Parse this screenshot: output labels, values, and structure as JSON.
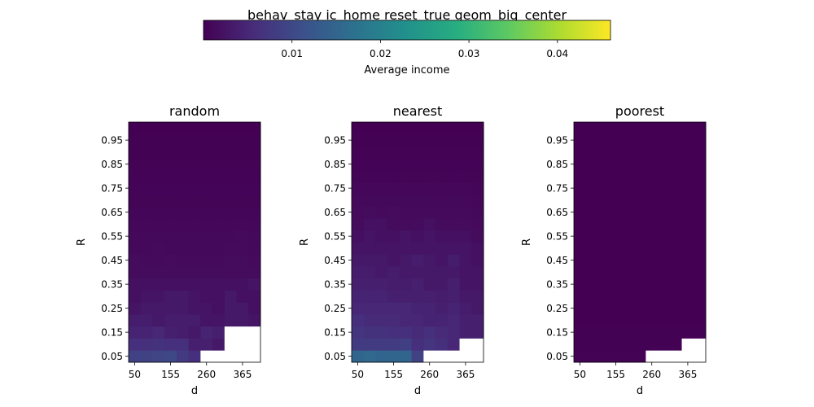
{
  "title": "behav_stay ic_home reset_true geom_big_center",
  "colorbar": {
    "label": "Average income",
    "colormap": "viridis",
    "vmin": 0.0,
    "vmax": 0.046,
    "ticks": [
      0.01,
      0.02,
      0.03,
      0.04
    ],
    "tick_labels": [
      "0.01",
      "0.02",
      "0.03",
      "0.04"
    ],
    "orientation": "horizontal",
    "placement": "top-center"
  },
  "chart_data": [
    {
      "type": "heatmap",
      "title": "random",
      "xlabel": "d",
      "ylabel": "R",
      "x_tick_labels": [
        "50",
        "155",
        "260",
        "365"
      ],
      "y_tick_labels": [
        "0.05",
        "0.15",
        "0.25",
        "0.35",
        "0.45",
        "0.55",
        "0.65",
        "0.75",
        "0.85",
        "0.95"
      ],
      "x": [
        50,
        85,
        120,
        155,
        190,
        225,
        260,
        295,
        330,
        365,
        400
      ],
      "y": [
        0.05,
        0.1,
        0.15,
        0.2,
        0.25,
        0.3,
        0.35,
        0.4,
        0.45,
        0.5,
        0.55,
        0.6,
        0.65,
        0.7,
        0.75,
        0.8,
        0.85,
        0.9,
        0.95,
        1.0
      ],
      "missing_color": "white",
      "z": [
        [
          0.009,
          0.009,
          0.0095,
          0.01,
          0.008,
          0.006,
          null,
          null,
          null,
          null,
          null
        ],
        [
          0.006,
          0.006,
          0.0065,
          0.006,
          0.006,
          0.004,
          0.004,
          0.003,
          null,
          null,
          null
        ],
        [
          0.0045,
          0.0045,
          0.005,
          0.004,
          0.0035,
          0.003,
          0.0045,
          0.004,
          null,
          null,
          null
        ],
        [
          0.0035,
          0.0035,
          0.003,
          0.0035,
          0.0035,
          0.0035,
          0.0025,
          0.0025,
          0.003,
          0.003,
          0.0025
        ],
        [
          0.0025,
          0.003,
          0.003,
          0.003,
          0.003,
          0.0025,
          0.0025,
          0.002,
          0.003,
          0.003,
          0.002
        ],
        [
          0.002,
          0.0025,
          0.0025,
          0.003,
          0.003,
          0.0025,
          0.002,
          0.002,
          0.003,
          0.002,
          0.002
        ],
        [
          0.002,
          0.002,
          0.002,
          0.002,
          0.002,
          0.002,
          0.002,
          0.002,
          0.002,
          0.002,
          0.0025
        ],
        [
          0.0015,
          0.0015,
          0.0015,
          0.0015,
          0.0015,
          0.0015,
          0.0015,
          0.0015,
          0.0015,
          0.0015,
          0.0015
        ],
        [
          0.0015,
          0.0012,
          0.0012,
          0.0015,
          0.0012,
          0.0012,
          0.0012,
          0.0012,
          0.0015,
          0.0015,
          0.0012
        ],
        [
          0.001,
          0.001,
          0.0012,
          0.001,
          0.001,
          0.001,
          0.001,
          0.001,
          0.0012,
          0.0012,
          0.001
        ],
        [
          0.001,
          0.001,
          0.001,
          0.001,
          0.001,
          0.001,
          0.001,
          0.001,
          0.001,
          0.0012,
          0.001
        ],
        [
          0.0008,
          0.0008,
          0.0008,
          0.0008,
          0.0008,
          0.0008,
          0.0008,
          0.0008,
          0.0008,
          0.0008,
          0.0008
        ],
        [
          0.0006,
          0.0006,
          0.0006,
          0.0006,
          0.0006,
          0.0006,
          0.0006,
          0.0006,
          0.0006,
          0.0006,
          0.0006
        ],
        [
          0.0005,
          0.0005,
          0.0005,
          0.0005,
          0.0005,
          0.0005,
          0.0005,
          0.0005,
          0.0005,
          0.0005,
          0.0005
        ],
        [
          0.0004,
          0.0004,
          0.0004,
          0.0004,
          0.0004,
          0.0004,
          0.0004,
          0.0004,
          0.0004,
          0.0004,
          0.0004
        ],
        [
          0.0003,
          0.0003,
          0.0003,
          0.0003,
          0.0003,
          0.0003,
          0.0003,
          0.0003,
          0.0003,
          0.0003,
          0.0003
        ],
        [
          0.0002,
          0.0002,
          0.0002,
          0.0002,
          0.0002,
          0.0002,
          0.0002,
          0.0002,
          0.0002,
          0.0002,
          0.0002
        ],
        [
          0.0001,
          0.0001,
          0.0001,
          0.0001,
          0.0001,
          0.0001,
          0.0001,
          0.0001,
          0.0001,
          0.0001,
          0.0001
        ],
        [
          0.0001,
          0.0001,
          0.0001,
          0.0001,
          0.0001,
          0.0001,
          0.0001,
          0.0001,
          0.0001,
          0.0001,
          0.0001
        ],
        [
          0.0,
          0.0,
          0.0,
          0.0,
          0.0,
          0.0,
          0.0,
          0.0,
          0.0,
          0.0,
          0.0
        ]
      ]
    },
    {
      "type": "heatmap",
      "title": "nearest",
      "xlabel": "d",
      "ylabel": "R",
      "x_tick_labels": [
        "50",
        "155",
        "260",
        "365"
      ],
      "y_tick_labels": [
        "0.05",
        "0.15",
        "0.25",
        "0.35",
        "0.45",
        "0.55",
        "0.65",
        "0.75",
        "0.85",
        "0.95"
      ],
      "x": [
        50,
        85,
        120,
        155,
        190,
        225,
        260,
        295,
        330,
        365,
        400
      ],
      "y": [
        0.05,
        0.1,
        0.15,
        0.2,
        0.25,
        0.3,
        0.35,
        0.4,
        0.45,
        0.5,
        0.55,
        0.6,
        0.65,
        0.7,
        0.75,
        0.8,
        0.85,
        0.9,
        0.95,
        1.0
      ],
      "missing_color": "white",
      "z": [
        [
          0.015,
          0.0155,
          0.015,
          0.015,
          0.015,
          0.009,
          null,
          null,
          null,
          null,
          null
        ],
        [
          0.008,
          0.008,
          0.008,
          0.008,
          0.0085,
          0.006,
          0.007,
          0.006,
          0.005,
          null,
          null
        ],
        [
          0.007,
          0.0065,
          0.0065,
          0.006,
          0.006,
          0.0055,
          0.006,
          0.0055,
          0.005,
          0.004,
          0.004
        ],
        [
          0.006,
          0.0055,
          0.0055,
          0.0055,
          0.005,
          0.005,
          0.0045,
          0.0045,
          0.005,
          0.004,
          0.004
        ],
        [
          0.005,
          0.005,
          0.005,
          0.005,
          0.005,
          0.0045,
          0.0045,
          0.004,
          0.0045,
          0.0035,
          0.003
        ],
        [
          0.0045,
          0.0045,
          0.0045,
          0.004,
          0.004,
          0.004,
          0.004,
          0.0035,
          0.004,
          0.003,
          0.003
        ],
        [
          0.004,
          0.004,
          0.004,
          0.0035,
          0.0035,
          0.004,
          0.003,
          0.003,
          0.004,
          0.0025,
          0.0025
        ],
        [
          0.0035,
          0.0035,
          0.003,
          0.0035,
          0.003,
          0.003,
          0.003,
          0.003,
          0.003,
          0.0025,
          0.0025
        ],
        [
          0.003,
          0.003,
          0.003,
          0.0025,
          0.003,
          0.0035,
          0.003,
          0.0025,
          0.0035,
          0.0025,
          0.002
        ],
        [
          0.0025,
          0.0025,
          0.0025,
          0.0025,
          0.0025,
          0.0025,
          0.0025,
          0.0025,
          0.0025,
          0.0025,
          0.002
        ],
        [
          0.002,
          0.0025,
          0.002,
          0.002,
          0.0025,
          0.002,
          0.0025,
          0.002,
          0.002,
          0.002,
          0.0015
        ],
        [
          0.0015,
          0.002,
          0.002,
          0.0015,
          0.0015,
          0.0015,
          0.002,
          0.0015,
          0.0015,
          0.0015,
          0.0012
        ],
        [
          0.0012,
          0.0015,
          0.0012,
          0.0015,
          0.0012,
          0.0012,
          0.0012,
          0.0012,
          0.0012,
          0.0012,
          0.001
        ],
        [
          0.001,
          0.001,
          0.001,
          0.001,
          0.001,
          0.001,
          0.001,
          0.001,
          0.001,
          0.001,
          0.0008
        ],
        [
          0.0008,
          0.0008,
          0.0008,
          0.0008,
          0.0008,
          0.0008,
          0.0008,
          0.0008,
          0.0008,
          0.0008,
          0.0006
        ],
        [
          0.0005,
          0.0005,
          0.0005,
          0.0005,
          0.0005,
          0.0005,
          0.0005,
          0.0005,
          0.0005,
          0.0005,
          0.0005
        ],
        [
          0.0003,
          0.0003,
          0.0003,
          0.0003,
          0.0003,
          0.0003,
          0.0003,
          0.0003,
          0.0003,
          0.0003,
          0.0003
        ],
        [
          0.0002,
          0.0002,
          0.0002,
          0.0002,
          0.0002,
          0.0002,
          0.0002,
          0.0002,
          0.0002,
          0.0002,
          0.0002
        ],
        [
          0.0001,
          0.0001,
          0.0001,
          0.0001,
          0.0001,
          0.0001,
          0.0001,
          0.0001,
          0.0001,
          0.0001,
          0.0001
        ],
        [
          0.0,
          0.0,
          0.0,
          0.0,
          0.0,
          0.0,
          0.0,
          0.0,
          0.0,
          0.0,
          0.0
        ]
      ]
    },
    {
      "type": "heatmap",
      "title": "poorest",
      "xlabel": "d",
      "ylabel": "R",
      "x_tick_labels": [
        "50",
        "155",
        "260",
        "365"
      ],
      "y_tick_labels": [
        "0.05",
        "0.15",
        "0.25",
        "0.35",
        "0.45",
        "0.55",
        "0.65",
        "0.75",
        "0.85",
        "0.95"
      ],
      "x": [
        50,
        85,
        120,
        155,
        190,
        225,
        260,
        295,
        330,
        365,
        400
      ],
      "y": [
        0.05,
        0.1,
        0.15,
        0.2,
        0.25,
        0.3,
        0.35,
        0.4,
        0.45,
        0.5,
        0.55,
        0.6,
        0.65,
        0.7,
        0.75,
        0.8,
        0.85,
        0.9,
        0.95,
        1.0
      ],
      "missing_color": "white",
      "z": [
        [
          0.0002,
          0.0002,
          0.0002,
          0.0002,
          0.0002,
          0.0002,
          null,
          null,
          null,
          null,
          null
        ],
        [
          0.0001,
          0.0001,
          0.0001,
          0.0001,
          0.0001,
          0.0001,
          0.0001,
          0.0001,
          0.0001,
          null,
          null
        ],
        [
          0.0001,
          0.0001,
          0.0001,
          0.0001,
          0.0001,
          0.0001,
          0.0001,
          0.0001,
          0.0001,
          0.0001,
          0.0001
        ],
        [
          0.0,
          0.0,
          0.0,
          0.0,
          0.0,
          0.0,
          0.0,
          0.0,
          0.0,
          0.0,
          0.0
        ],
        [
          0.0,
          0.0,
          0.0,
          0.0,
          0.0,
          0.0,
          0.0,
          0.0,
          0.0,
          0.0,
          0.0
        ],
        [
          0.0,
          0.0,
          0.0,
          0.0,
          0.0,
          0.0,
          0.0,
          0.0,
          0.0,
          0.0,
          0.0
        ],
        [
          0.0,
          0.0,
          0.0,
          0.0,
          0.0,
          0.0,
          0.0,
          0.0,
          0.0,
          0.0,
          0.0
        ],
        [
          0.0,
          0.0,
          0.0,
          0.0,
          0.0,
          0.0,
          0.0,
          0.0,
          0.0,
          0.0,
          0.0
        ],
        [
          0.0,
          0.0,
          0.0,
          0.0,
          0.0,
          0.0,
          0.0,
          0.0,
          0.0,
          0.0,
          0.0
        ],
        [
          0.0,
          0.0,
          0.0,
          0.0,
          0.0,
          0.0,
          0.0,
          0.0,
          0.0,
          0.0,
          0.0
        ],
        [
          0.0,
          0.0,
          0.0,
          0.0,
          0.0,
          0.0,
          0.0,
          0.0,
          0.0,
          0.0,
          0.0
        ],
        [
          0.0,
          0.0,
          0.0,
          0.0,
          0.0,
          0.0,
          0.0,
          0.0,
          0.0,
          0.0,
          0.0
        ],
        [
          0.0,
          0.0,
          0.0,
          0.0,
          0.0,
          0.0,
          0.0,
          0.0,
          0.0,
          0.0,
          0.0
        ],
        [
          0.0,
          0.0,
          0.0,
          0.0,
          0.0,
          0.0,
          0.0,
          0.0,
          0.0,
          0.0,
          0.0
        ],
        [
          0.0,
          0.0,
          0.0,
          0.0,
          0.0,
          0.0,
          0.0,
          0.0,
          0.0,
          0.0,
          0.0
        ],
        [
          0.0,
          0.0,
          0.0,
          0.0,
          0.0,
          0.0,
          0.0,
          0.0,
          0.0,
          0.0,
          0.0
        ],
        [
          0.0,
          0.0,
          0.0,
          0.0,
          0.0,
          0.0,
          0.0,
          0.0,
          0.0,
          0.0,
          0.0
        ],
        [
          0.0,
          0.0,
          0.0,
          0.0,
          0.0,
          0.0,
          0.0,
          0.0,
          0.0,
          0.0,
          0.0
        ],
        [
          0.0,
          0.0,
          0.0,
          0.0,
          0.0,
          0.0,
          0.0,
          0.0,
          0.0,
          0.0,
          0.0
        ],
        [
          0.0,
          0.0,
          0.0,
          0.0,
          0.0,
          0.0,
          0.0,
          0.0,
          0.0,
          0.0,
          0.0
        ]
      ]
    }
  ]
}
